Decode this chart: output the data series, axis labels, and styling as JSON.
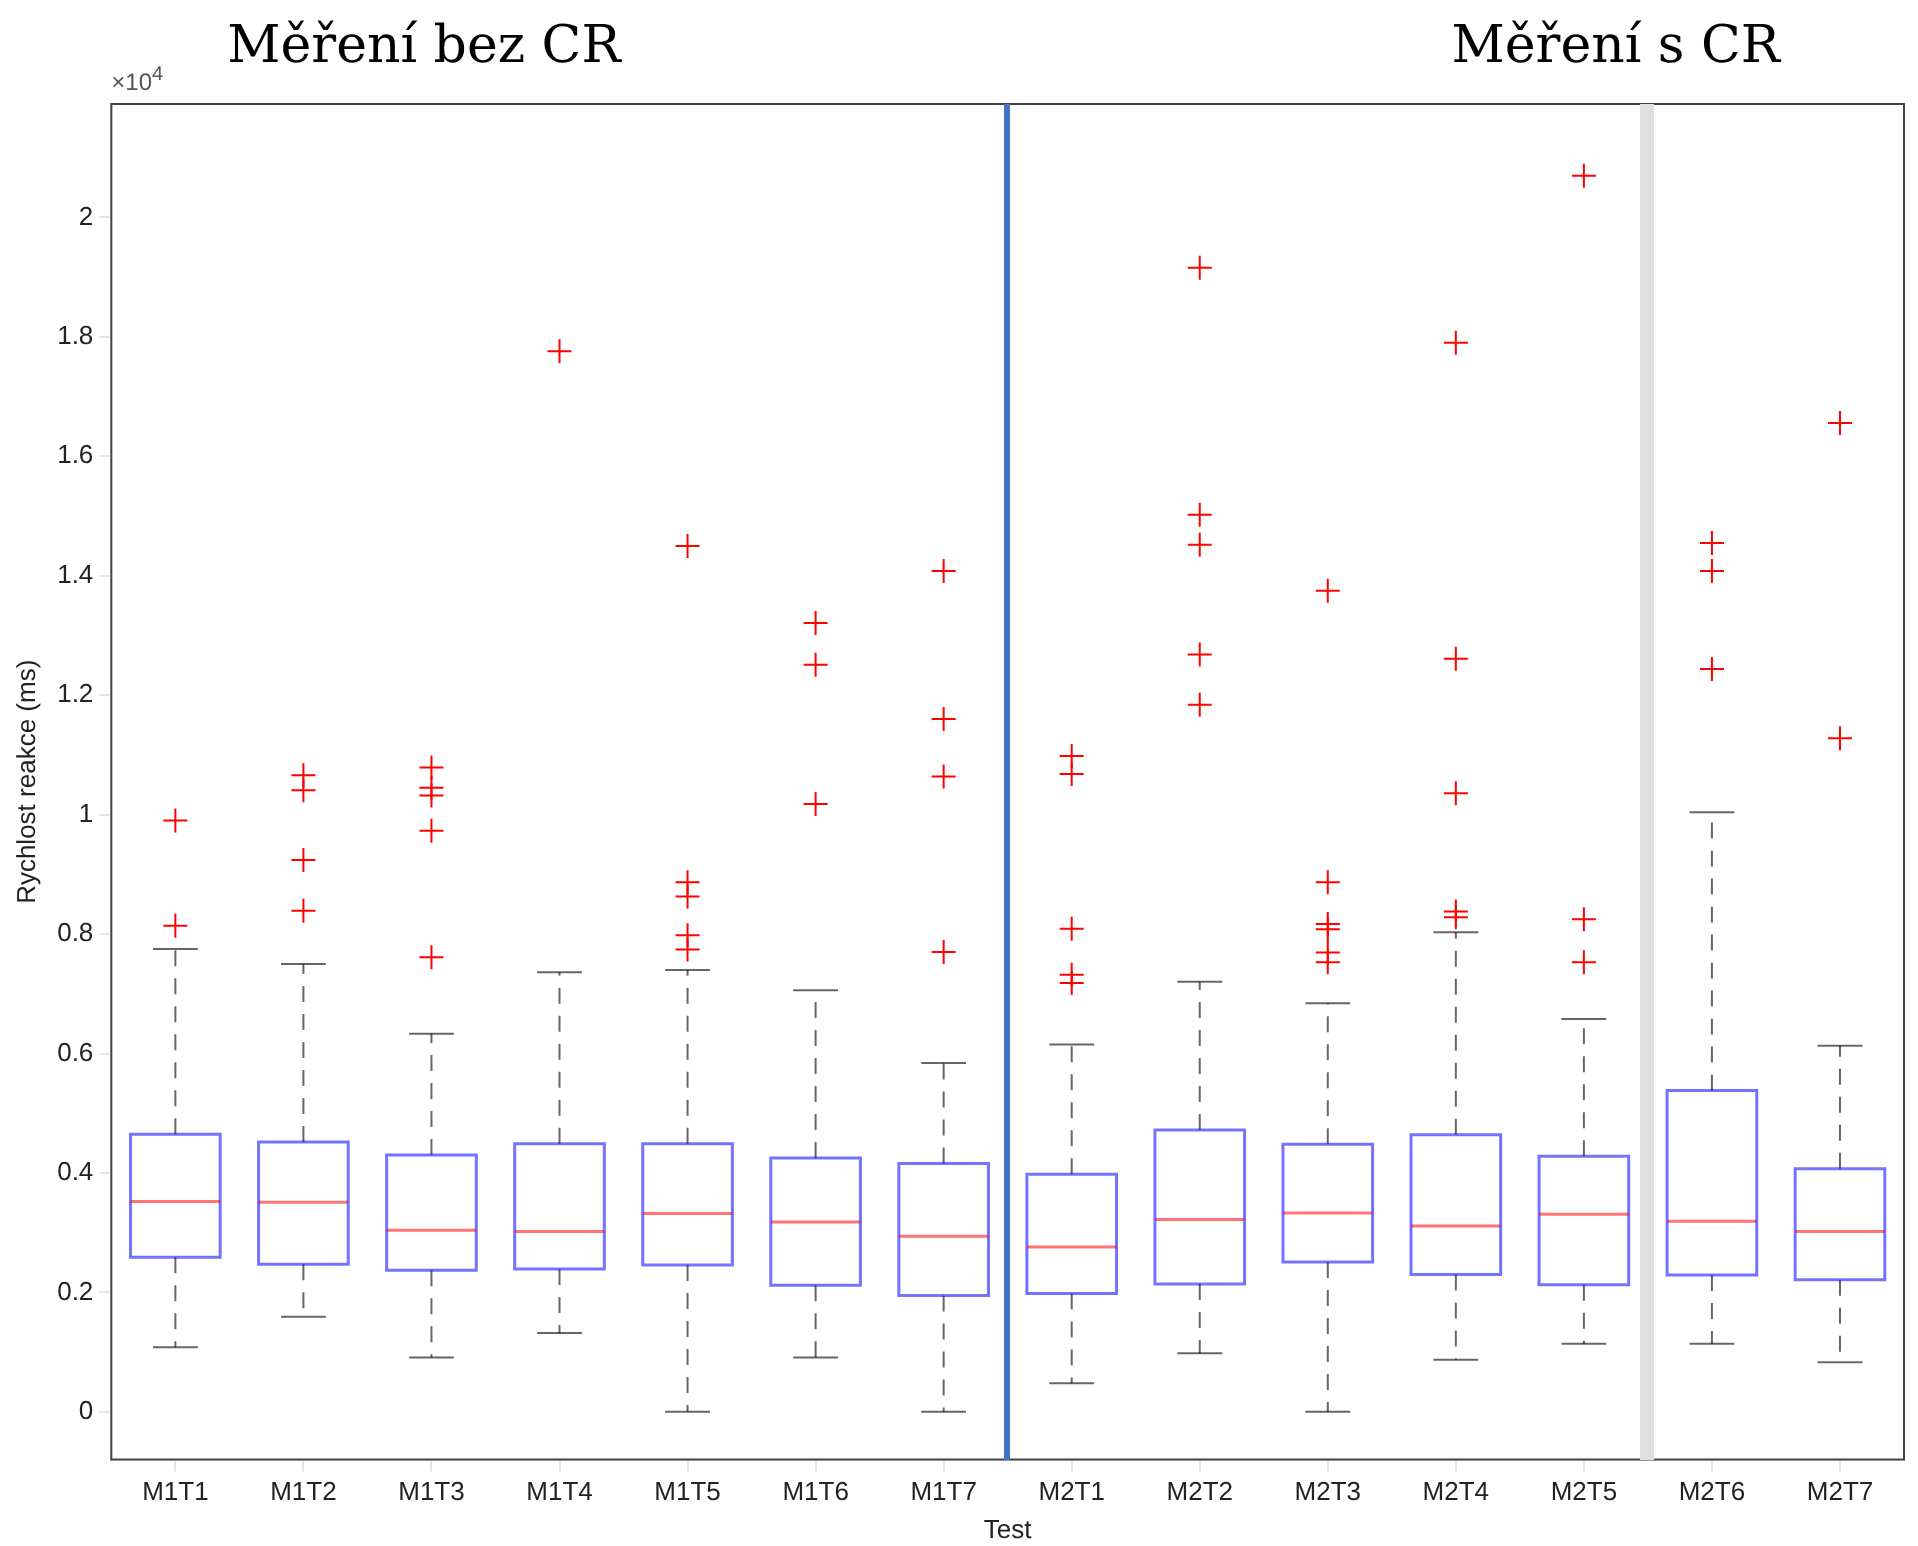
{
  "chart_data": {
    "type": "box",
    "xlabel": "Test",
    "ylabel": "Rychlost reakce (ms)",
    "annotations": [
      "Měření bez CR",
      "Měření s CR",
      "×10$^{4}$"
    ],
    "categories": [
      "M1T1",
      "M1T2",
      "M1T3",
      "M1T4",
      "M1T5",
      "M1T6",
      "M1T7",
      "M2T1",
      "M2T2",
      "M2T3",
      "M2T4",
      "M2T5",
      "M2T6",
      "M2T7"
    ],
    "color": "#0000ff",
    "marker": "cross",
    "line_style": "dashed",
    "grid": false,
    "legend": false,
    "ylim": [
      -0.08,
      2.19
    ],
    "yticks": [
      0,
      0.2,
      0.4,
      0.6,
      0.8,
      1,
      1.2,
      1.4,
      1.6,
      1.8,
      2
    ],
    "boxes": [
      {
        "low": 0.108,
        "q1": 0.259,
        "median": 0.352,
        "q3": 0.465,
        "high": 0.775,
        "outliers": [
          0.814,
          0.99
        ]
      },
      {
        "low": 0.159,
        "q1": 0.247,
        "median": 0.351,
        "q3": 0.452,
        "high": 0.75,
        "outliers": [
          0.839,
          0.924,
          1.041,
          1.066
        ]
      },
      {
        "low": 0.091,
        "q1": 0.237,
        "median": 0.304,
        "q3": 0.43,
        "high": 0.633,
        "outliers": [
          0.761,
          0.973,
          1.032,
          1.045,
          1.079
        ]
      },
      {
        "low": 0.132,
        "q1": 0.239,
        "median": 0.302,
        "q3": 0.449,
        "high": 0.736,
        "outliers": [
          1.776
        ]
      },
      {
        "low": 0,
        "q1": 0.246,
        "median": 0.332,
        "q3": 0.449,
        "high": 0.74,
        "outliers": [
          0.774,
          0.798,
          0.863,
          0.887,
          1.45
        ]
      },
      {
        "low": 0.091,
        "q1": 0.212,
        "median": 0.318,
        "q3": 0.425,
        "high": 0.706,
        "outliers": [
          1.018,
          1.251,
          1.321
        ]
      },
      {
        "low": 0,
        "q1": 0.195,
        "median": 0.294,
        "q3": 0.416,
        "high": 0.584,
        "outliers": [
          0.77,
          1.064,
          1.16,
          1.408
        ]
      },
      {
        "low": 0.048,
        "q1": 0.198,
        "median": 0.276,
        "q3": 0.398,
        "high": 0.615,
        "outliers": [
          0.718,
          0.732,
          0.809,
          1.068,
          1.098
        ]
      },
      {
        "low": 0.098,
        "q1": 0.214,
        "median": 0.322,
        "q3": 0.472,
        "high": 0.72,
        "outliers": [
          1.184,
          1.268,
          1.452,
          1.502,
          1.916
        ]
      },
      {
        "low": 0,
        "q1": 0.251,
        "median": 0.333,
        "q3": 0.448,
        "high": 0.684,
        "outliers": [
          0.753,
          0.769,
          0.808,
          0.817,
          0.887,
          1.375
        ]
      },
      {
        "low": 0.087,
        "q1": 0.23,
        "median": 0.311,
        "q3": 0.464,
        "high": 0.803,
        "outliers": [
          0.828,
          0.838,
          1.036,
          1.261,
          1.79
        ]
      },
      {
        "low": 0.114,
        "q1": 0.213,
        "median": 0.331,
        "q3": 0.428,
        "high": 0.658,
        "outliers": [
          0.753,
          0.825,
          2.07
        ]
      },
      {
        "low": 0.114,
        "q1": 0.229,
        "median": 0.319,
        "q3": 0.538,
        "high": 1.004,
        "outliers": [
          1.244,
          1.408,
          1.455
        ]
      },
      {
        "low": 0.083,
        "q1": 0.221,
        "median": 0.302,
        "q3": 0.407,
        "high": 0.613,
        "outliers": [
          1.128,
          1.656
        ]
      }
    ]
  }
}
